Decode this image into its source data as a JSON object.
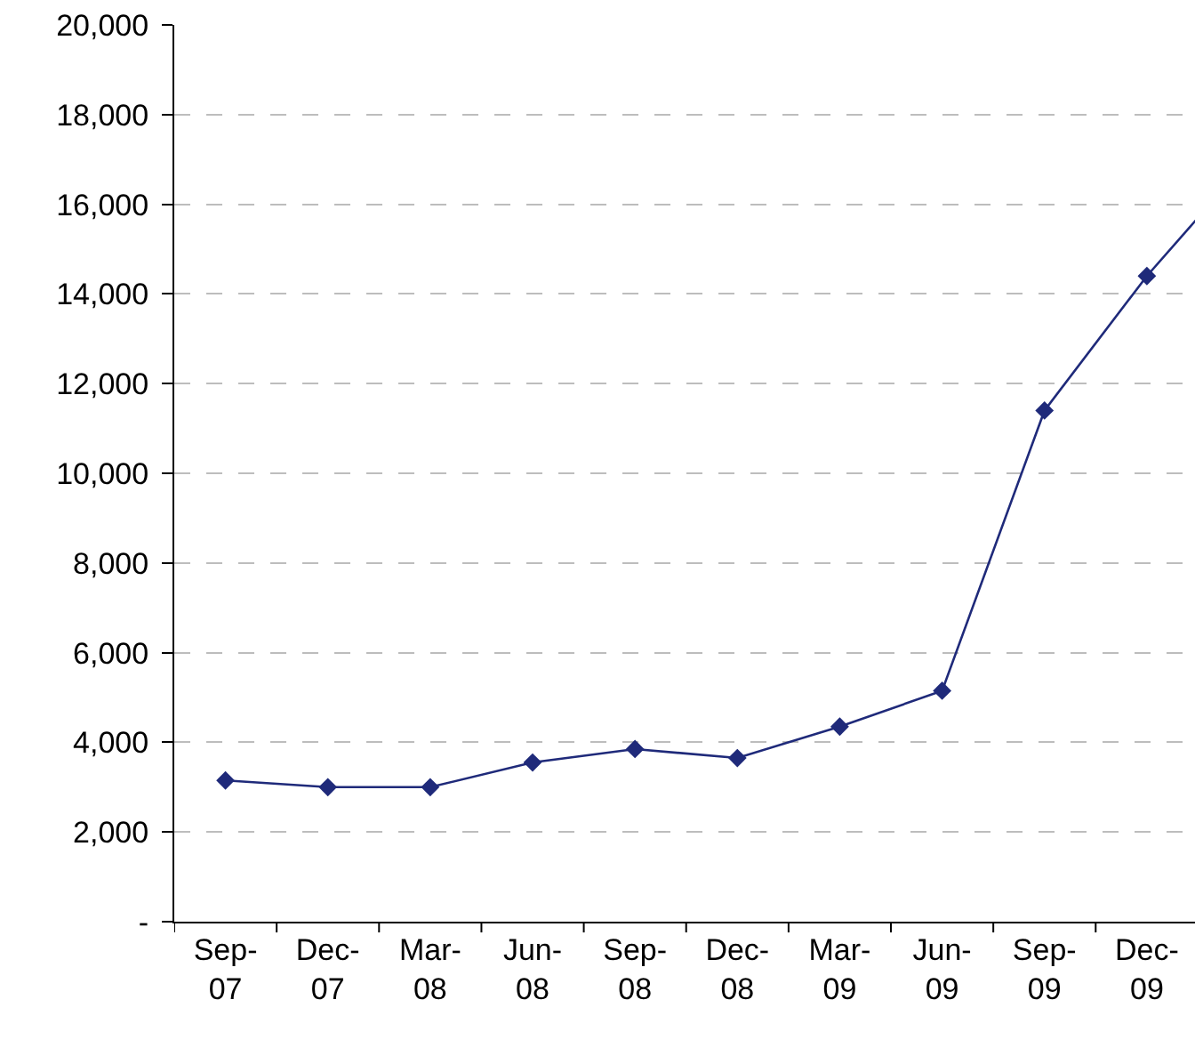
{
  "chart_data": {
    "type": "line",
    "categories": [
      "Sep-\n07",
      "Dec-\n07",
      "Mar-\n08",
      "Jun-\n08",
      "Sep-\n08",
      "Dec-\n08",
      "Mar-\n09",
      "Jun-\n09",
      "Sep-\n09",
      "Dec-\n09",
      null
    ],
    "series": [
      {
        "color": "#1f2a7a",
        "values": [
          3150,
          3000,
          3000,
          3550,
          3850,
          3650,
          4350,
          5150,
          11400,
          14400,
          17000
        ]
      }
    ],
    "ylim": [
      0,
      20000
    ],
    "yticks": [
      {
        "value": 0,
        "label": "-"
      },
      {
        "value": 2000,
        "label": "2,000"
      },
      {
        "value": 4000,
        "label": "4,000"
      },
      {
        "value": 6000,
        "label": "6,000"
      },
      {
        "value": 8000,
        "label": "8,000"
      },
      {
        "value": 10000,
        "label": "10,000"
      },
      {
        "value": 12000,
        "label": "12,000"
      },
      {
        "value": 14000,
        "label": "14,000"
      },
      {
        "value": 16000,
        "label": "16,000"
      },
      {
        "value": 18000,
        "label": "18,000"
      },
      {
        "value": 20000,
        "label": "20,000"
      }
    ],
    "grid": "y",
    "marker": "diamond",
    "line_style": "solid"
  }
}
